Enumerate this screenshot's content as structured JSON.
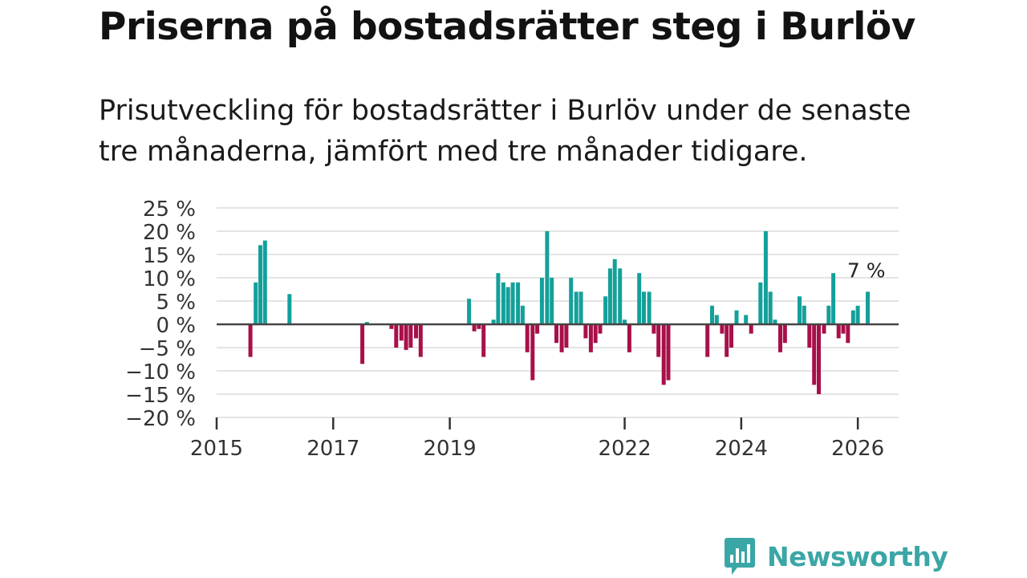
{
  "header": {
    "title": "Priserna på bostadsrätter steg i Burlöv",
    "subtitle": "Prisutveckling för bostadsrätter i Burlöv under de senaste tre månaderna, jämfört med tre månader tidigare."
  },
  "colors": {
    "positive": "#14a09a",
    "negative": "#a8104a",
    "grid": "#dcdcdc",
    "zero_line": "#444444",
    "brand": "#3ba6a6"
  },
  "chart_data": {
    "type": "bar",
    "title": "Priserna på bostadsrätter steg i Burlöv",
    "subtitle": "Prisutveckling för bostadsrätter i Burlöv under de senaste tre månaderna, jämfört med tre månader tidigare.",
    "xlabel": "",
    "ylabel": "",
    "grid": true,
    "legend": "none",
    "xlim": [
      2015,
      2026.7
    ],
    "ylim": [
      -20,
      25
    ],
    "y_ticks": [
      25,
      20,
      15,
      10,
      5,
      0,
      -5,
      -10,
      -15,
      -20
    ],
    "y_tick_labels": [
      "25 %",
      "20 %",
      "15 %",
      "10 %",
      "5 %",
      "0 %",
      "−5 %",
      "−10 %",
      "−15 %",
      "−20 %"
    ],
    "x_ticks": [
      2015,
      2017,
      2019,
      2022,
      2024,
      2026
    ],
    "x_tick_labels": [
      "2015",
      "2017",
      "2019",
      "2022",
      "2024",
      "2026"
    ],
    "unit": "%",
    "x": [
      2015.58,
      2015.67,
      2015.75,
      2015.83,
      2016.25,
      2017.5,
      2017.58,
      2018.0,
      2018.08,
      2018.17,
      2018.25,
      2018.33,
      2018.42,
      2018.5,
      2019.33,
      2019.42,
      2019.5,
      2019.58,
      2019.75,
      2019.83,
      2019.92,
      2020.0,
      2020.08,
      2020.17,
      2020.25,
      2020.33,
      2020.42,
      2020.5,
      2020.58,
      2020.67,
      2020.75,
      2020.83,
      2020.92,
      2021.0,
      2021.08,
      2021.17,
      2021.25,
      2021.33,
      2021.42,
      2021.5,
      2021.58,
      2021.67,
      2021.75,
      2021.83,
      2021.92,
      2022.0,
      2022.08,
      2022.25,
      2022.33,
      2022.42,
      2022.5,
      2022.58,
      2022.67,
      2022.75,
      2023.42,
      2023.5,
      2023.58,
      2023.67,
      2023.75,
      2023.83,
      2023.92,
      2024.08,
      2024.17,
      2024.33,
      2024.42,
      2024.5,
      2024.58,
      2024.67,
      2024.75,
      2025.0,
      2025.08,
      2025.17,
      2025.25,
      2025.33,
      2025.42,
      2025.5,
      2025.58,
      2025.67,
      2025.75,
      2025.83,
      2025.92,
      2026.0,
      2026.17
    ],
    "values": [
      -7,
      9,
      17,
      18,
      6.5,
      -8.5,
      0.5,
      -1,
      -5,
      -3.5,
      -5.5,
      -5,
      -3,
      -7,
      5.5,
      -1.5,
      -1,
      -7,
      1,
      11,
      9,
      8,
      9,
      9,
      4,
      -6,
      -12,
      -2,
      10,
      20,
      10,
      -4,
      -6,
      -5,
      10,
      7,
      7,
      -3,
      -6,
      -4,
      -2,
      6,
      12,
      14,
      12,
      1,
      -6,
      11,
      7,
      7,
      -2,
      -7,
      -13,
      -12,
      -7,
      4,
      2,
      -2,
      -7,
      -5,
      3,
      2,
      -2,
      9,
      20,
      7,
      1,
      -6,
      -4,
      6,
      4,
      -5,
      -13,
      -15,
      -2,
      4,
      11,
      -3,
      -2,
      -4,
      3,
      4,
      7
    ],
    "annotations": [
      {
        "text": "7 %",
        "x": 2026.17,
        "y": 7
      }
    ]
  },
  "branding": {
    "name": "Newsworthy",
    "logo_icon": "newsworthy-chart-bubble-icon"
  }
}
